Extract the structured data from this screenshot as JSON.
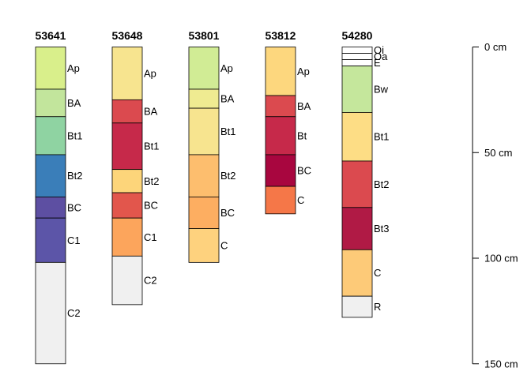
{
  "depth_axis": {
    "unit": "cm",
    "ticks": [
      {
        "value": 0,
        "label": "0 cm"
      },
      {
        "value": 50,
        "label": "50 cm"
      },
      {
        "value": 100,
        "label": "100 cm"
      },
      {
        "value": 150,
        "label": "150 cm"
      }
    ]
  },
  "profiles": [
    {
      "id": "53641",
      "horizons": [
        {
          "name": "Ap",
          "top": 0,
          "bottom": 20,
          "color": "#D9EF8B"
        },
        {
          "name": "BA",
          "top": 20,
          "bottom": 33,
          "color": "#C2E59C"
        },
        {
          "name": "Bt1",
          "top": 33,
          "bottom": 51,
          "color": "#8FD3A2"
        },
        {
          "name": "Bt2",
          "top": 51,
          "bottom": 71,
          "color": "#3A7EB9"
        },
        {
          "name": "BC",
          "top": 71,
          "bottom": 81,
          "color": "#5D4FA2"
        },
        {
          "name": "C1",
          "top": 81,
          "bottom": 102,
          "color": "#5C55A8"
        },
        {
          "name": "C2",
          "top": 102,
          "bottom": 150,
          "color": "#F0F0F0"
        }
      ]
    },
    {
      "id": "53648",
      "horizons": [
        {
          "name": "Ap",
          "top": 0,
          "bottom": 25,
          "color": "#F7E48F"
        },
        {
          "name": "BA",
          "top": 25,
          "bottom": 36,
          "color": "#DB4A4F"
        },
        {
          "name": "Bt1",
          "top": 36,
          "bottom": 58,
          "color": "#C6294A"
        },
        {
          "name": "Bt2",
          "top": 58,
          "bottom": 69,
          "color": "#FDD57A"
        },
        {
          "name": "BC",
          "top": 69,
          "bottom": 81,
          "color": "#E2564C"
        },
        {
          "name": "C1",
          "top": 81,
          "bottom": 99,
          "color": "#FCA55C"
        },
        {
          "name": "C2",
          "top": 99,
          "bottom": 122,
          "color": "#F0F0F0"
        }
      ]
    },
    {
      "id": "53801",
      "horizons": [
        {
          "name": "Ap",
          "top": 0,
          "bottom": 20,
          "color": "#D1EC95"
        },
        {
          "name": "BA",
          "top": 20,
          "bottom": 29,
          "color": "#EFEB91"
        },
        {
          "name": "Bt1",
          "top": 29,
          "bottom": 51,
          "color": "#F7E48F"
        },
        {
          "name": "Bt2",
          "top": 51,
          "bottom": 71,
          "color": "#FDBE6E"
        },
        {
          "name": "BC",
          "top": 71,
          "bottom": 86,
          "color": "#FDAE61"
        },
        {
          "name": "C",
          "top": 86,
          "bottom": 102,
          "color": "#FED27E"
        }
      ]
    },
    {
      "id": "53812",
      "horizons": [
        {
          "name": "Ap",
          "top": 0,
          "bottom": 23,
          "color": "#FDD77E"
        },
        {
          "name": "BA",
          "top": 23,
          "bottom": 33,
          "color": "#DB4A4F"
        },
        {
          "name": "Bt",
          "top": 33,
          "bottom": 51,
          "color": "#C6294A"
        },
        {
          "name": "BC",
          "top": 51,
          "bottom": 66,
          "color": "#A8063F"
        },
        {
          "name": "C",
          "top": 66,
          "bottom": 79,
          "color": "#F57748"
        }
      ]
    },
    {
      "id": "54280",
      "horizons": [
        {
          "name": "Oi",
          "top": 0,
          "bottom": 3,
          "color": "#FFFFFF"
        },
        {
          "name": "Oa",
          "top": 3,
          "bottom": 6,
          "color": "#FFFFFF"
        },
        {
          "name": "E",
          "top": 6,
          "bottom": 9,
          "color": "#FFFFFF"
        },
        {
          "name": "Bw",
          "top": 9,
          "bottom": 31,
          "color": "#C5E79C"
        },
        {
          "name": "Bt1",
          "top": 31,
          "bottom": 54,
          "color": "#FDDD85"
        },
        {
          "name": "Bt2",
          "top": 54,
          "bottom": 76,
          "color": "#DB4A4F"
        },
        {
          "name": "Bt3",
          "top": 76,
          "bottom": 96,
          "color": "#B01A45"
        },
        {
          "name": "C",
          "top": 96,
          "bottom": 118,
          "color": "#FDCA78"
        },
        {
          "name": "R",
          "top": 118,
          "bottom": 128,
          "color": "#F0F0F0"
        }
      ]
    }
  ]
}
